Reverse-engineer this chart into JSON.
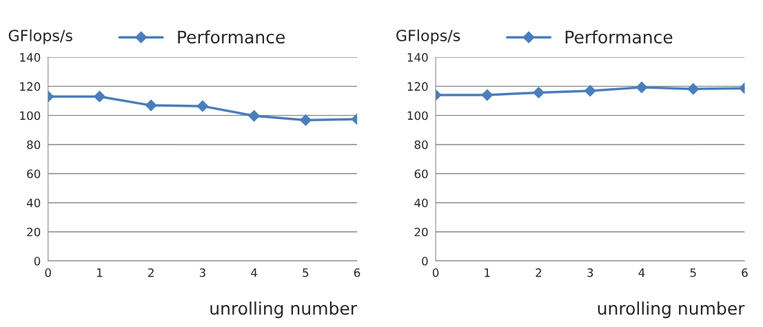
{
  "chart_data": [
    {
      "type": "line",
      "ylabel": "GFlops/s",
      "xlabel": "unrolling number",
      "categories": [
        "0",
        "1",
        "2",
        "3",
        "4",
        "5",
        "6"
      ],
      "series": [
        {
          "name": "Performance",
          "color": "#4a7ebb",
          "values": [
            113,
            113,
            106.9,
            106.4,
            99.7,
            96.8,
            97.4
          ]
        }
      ],
      "ylim": [
        0,
        140
      ],
      "yticks": [
        0,
        20,
        40,
        60,
        80,
        100,
        120,
        140
      ],
      "grid": "y",
      "legend": "top",
      "marker": "diamond",
      "line_style": "solid"
    },
    {
      "type": "line",
      "ylabel": "GFlops/s",
      "xlabel": "unrolling number",
      "categories": [
        "0",
        "1",
        "2",
        "3",
        "4",
        "5",
        "6"
      ],
      "series": [
        {
          "name": "Performance",
          "color": "#4a7ebb",
          "values": [
            114,
            114,
            115.7,
            116.9,
            119.3,
            118.2,
            118.7
          ]
        }
      ],
      "ylim": [
        0,
        140
      ],
      "yticks": [
        0,
        20,
        40,
        60,
        80,
        100,
        120,
        140
      ],
      "grid": "y",
      "legend": "top",
      "marker": "diamond",
      "line_style": "solid"
    }
  ]
}
